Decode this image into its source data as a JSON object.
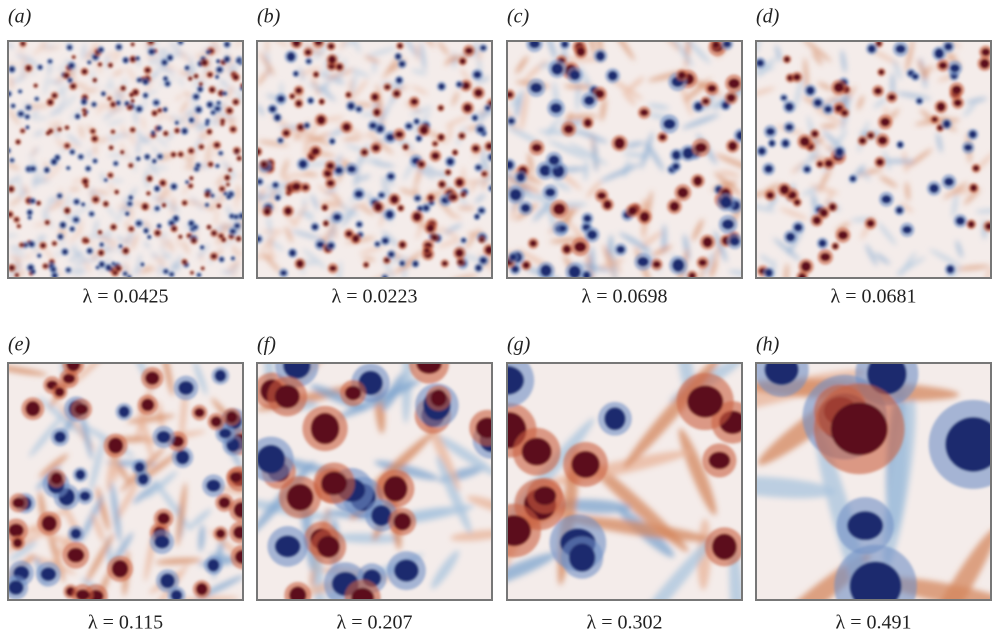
{
  "panels": [
    {
      "label": "(a)",
      "caption": "λ = 0.0425"
    },
    {
      "label": "(b)",
      "caption": "λ = 0.0223"
    },
    {
      "label": "(c)",
      "caption": "λ = 0.0698"
    },
    {
      "label": "(d)",
      "caption": "λ = 0.0681"
    },
    {
      "label": "(e)",
      "caption": "λ = 0.115"
    },
    {
      "label": "(f)",
      "caption": "λ = 0.207"
    },
    {
      "label": "(g)",
      "caption": "λ = 0.302"
    },
    {
      "label": "(h)",
      "caption": "λ = 0.491"
    }
  ]
}
